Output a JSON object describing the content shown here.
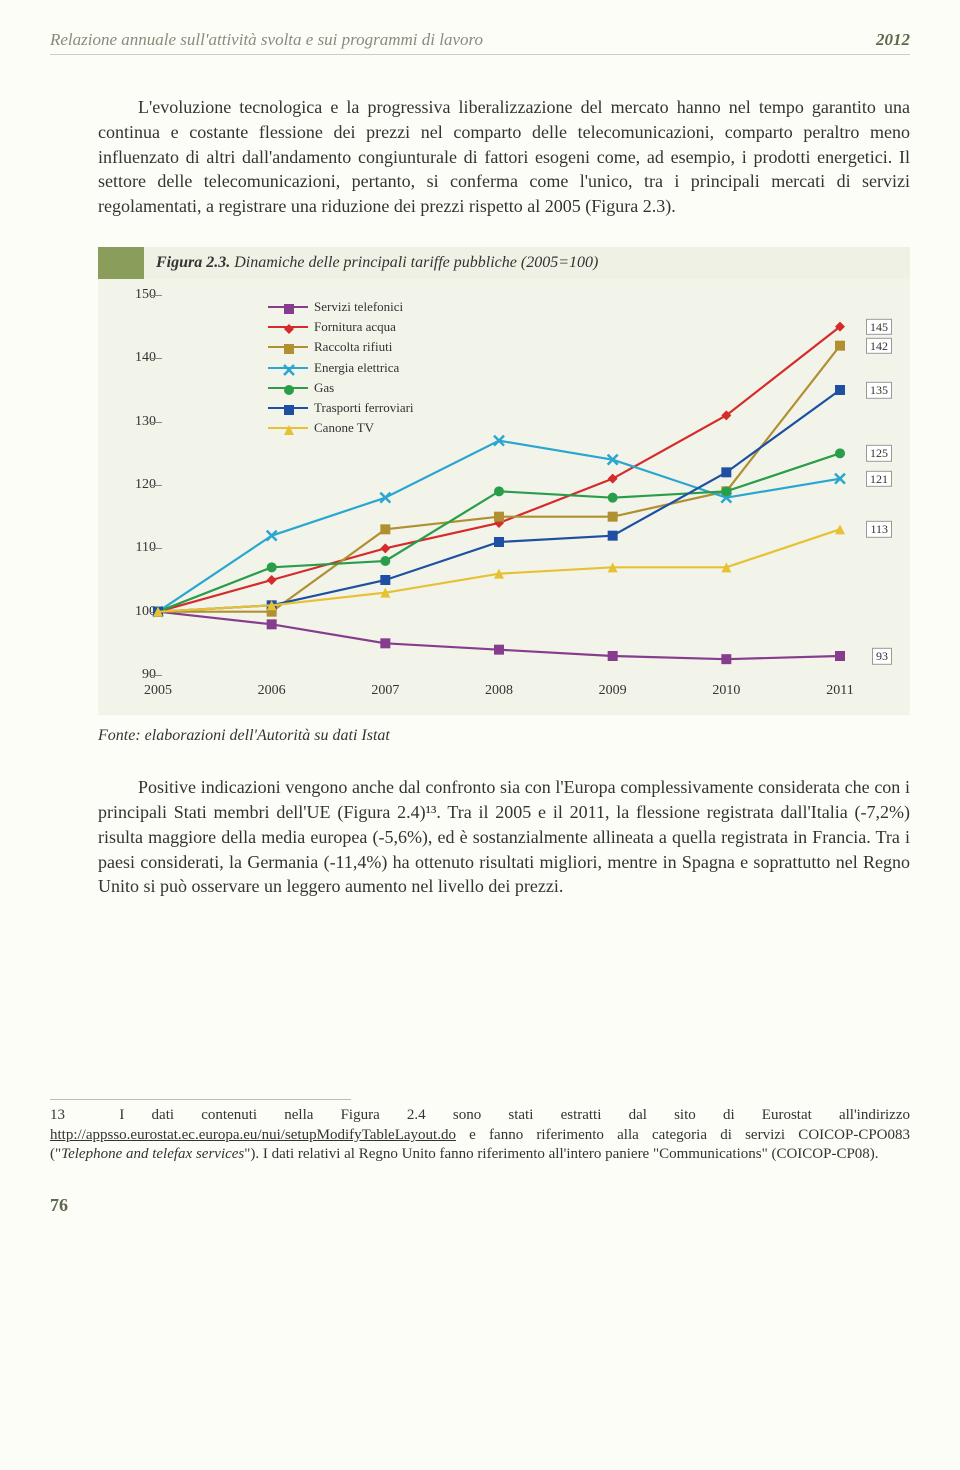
{
  "header": {
    "title": "Relazione annuale sull'attività svolta e sui programmi di lavoro",
    "year": "2012"
  },
  "para1": "L'evoluzione tecnologica e la progressiva liberalizzazione del mercato hanno nel tempo garantito una continua e costante flessione dei prezzi nel comparto delle telecomunicazioni, comparto peraltro meno influenzato di altri dall'andamento congiunturale di fattori esogeni come, ad esempio, i prodotti energetici. Il settore delle telecomunicazioni, pertanto, si conferma come l'unico, tra i principali mercati di servizi regolamentati, a registrare una riduzione dei prezzi rispetto al 2005 (Figura 2.3).",
  "figure": {
    "label": "Figura 2.3.",
    "caption": " Dinamiche delle principali tariffe pubbliche (2005=100)",
    "source": "Fonte: elaborazioni dell'Autorità su dati Istat",
    "chart": {
      "type": "line",
      "ylim": [
        90,
        150
      ],
      "ytick_step": 10,
      "yticks": [
        90,
        100,
        110,
        120,
        130,
        140,
        150
      ],
      "x_categories": [
        "2005",
        "2006",
        "2007",
        "2008",
        "2009",
        "2010",
        "2011"
      ],
      "background_color": "#f2f4ea",
      "series": [
        {
          "name": "Servizi telefonici",
          "color": "#863d8e",
          "marker": "square",
          "values": [
            100,
            98,
            95,
            94,
            93,
            92.5,
            93
          ],
          "end_label": "93"
        },
        {
          "name": "Fornitura acqua",
          "color": "#d52b2b",
          "marker": "diamond",
          "values": [
            100,
            105,
            110,
            114,
            121,
            131,
            145
          ],
          "end_label": "145"
        },
        {
          "name": "Raccolta rifiuti",
          "color": "#b09030",
          "marker": "square",
          "values": [
            100,
            100,
            113,
            115,
            115,
            119,
            142
          ],
          "end_label": "142"
        },
        {
          "name": "Energia elettrica",
          "color": "#2aa6d0",
          "marker": "x",
          "values": [
            100,
            112,
            118,
            127,
            124,
            118,
            121
          ],
          "end_label": "121"
        },
        {
          "name": "Gas",
          "color": "#2a9d4a",
          "marker": "circle",
          "values": [
            100,
            107,
            108,
            119,
            118,
            119,
            125
          ],
          "end_label": "125"
        },
        {
          "name": "Trasporti ferroviari",
          "color": "#1e4fa3",
          "marker": "square",
          "values": [
            100,
            101,
            105,
            111,
            112,
            122,
            135
          ],
          "end_label": "135"
        },
        {
          "name": "Canone TV",
          "color": "#e6c233",
          "marker": "triangle",
          "values": [
            100,
            101,
            103,
            106,
            107,
            107,
            113
          ],
          "end_label": "113"
        }
      ],
      "end_labels_order": [
        "145",
        "142",
        "135",
        "125",
        "121",
        "113",
        "93"
      ],
      "font_size_axis": 14,
      "font_size_legend": 13,
      "line_width": 2.2,
      "marker_size": 10
    }
  },
  "para2": "Positive indicazioni vengono anche dal confronto sia con l'Europa complessivamente considerata che con i principali Stati membri dell'UE (Figura 2.4)¹³. Tra il 2005 e il 2011, la flessione registrata dall'Italia (-7,2%) risulta maggiore della media europea (-5,6%), ed è sostanzialmente allineata a quella registrata in Francia. Tra i paesi considerati, la Germania (-11,4%) ha ottenuto risultati migliori, mentre in Spagna e soprattutto nel Regno Unito si può osservare un leggero aumento nel livello dei prezzi.",
  "footnote": {
    "marker": "13",
    "text_a": "I dati contenuti nella Figura 2.4 sono stati estratti dal sito di Eurostat all'indirizzo ",
    "link": "http://appsso.eurostat.ec.europa.eu/nui/setupModifyTableLayout.do",
    "text_b": " e fanno riferimento alla categoria di servizi COICOP-CPO083 (\"",
    "italic": "Telephone and telefax services",
    "text_c": "\"). I dati relativi al Regno Unito fanno riferimento all'intero paniere \"Communications\" (COICOP-CP08)."
  },
  "page_number": "76"
}
